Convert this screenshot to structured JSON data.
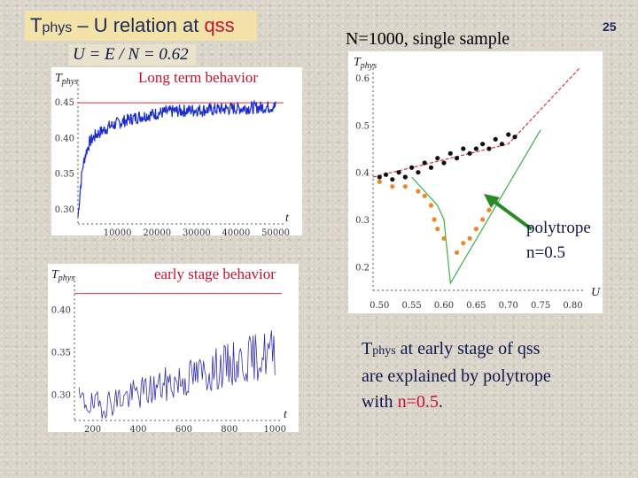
{
  "slide": {
    "title_T": "T",
    "title_sub": "phys",
    "title_rest": " – U relation at ",
    "title_qss": "qss",
    "formula": "U = E / N = 0.62",
    "page_number": "25",
    "heading": "N=1000, single sample",
    "label_long": "Long term behavior",
    "label_early": "early stage behavior",
    "polytrope_line1": "polytrope",
    "polytrope_line2": "n=0.5",
    "caption_T": "T",
    "caption_sub": "phys",
    "caption_l1": "  at  early stage of qss",
    "caption_l2": "are explained by polytrope",
    "caption_l3_pre": "with ",
    "caption_l3_red": "n=0.5",
    "caption_l3_post": ".",
    "colors": {
      "accent_red": "#c8102e",
      "text_navy": "#10164a",
      "title_bg": "#f3e3a8",
      "noise_blue": "#1a2ccf",
      "dot_orange": "#e8882a"
    }
  },
  "chart_data": [
    {
      "type": "line",
      "id": "long_term",
      "ylabel": "T_phys",
      "xlabel": "t",
      "x_ticks": [
        "10000",
        "20000",
        "30000",
        "40000",
        "50000"
      ],
      "y_ticks": [
        "0.30",
        "0.35",
        "0.40",
        "0.45"
      ],
      "ylim": [
        0.28,
        0.47
      ],
      "xlim": [
        0,
        52000
      ],
      "reference_line": {
        "name": "qss value",
        "y": 0.45,
        "color": "#d33"
      },
      "series": [
        {
          "color": "#1a2ccf",
          "x": [
            0,
            600,
            1200,
            2000,
            3000,
            4500,
            6000,
            8000,
            10000,
            12000,
            15000,
            18000,
            21000,
            24000,
            27000,
            30000,
            33000,
            36000,
            40000,
            44000,
            48000,
            50000
          ],
          "values": [
            0.29,
            0.33,
            0.36,
            0.38,
            0.395,
            0.405,
            0.41,
            0.417,
            0.421,
            0.425,
            0.43,
            0.433,
            0.436,
            0.438,
            0.439,
            0.44,
            0.44,
            0.441,
            0.442,
            0.443,
            0.444,
            0.445
          ]
        }
      ]
    },
    {
      "type": "line",
      "id": "early_stage",
      "ylabel": "T_phys",
      "xlabel": "t",
      "x_ticks": [
        "200",
        "400",
        "600",
        "800",
        "1000"
      ],
      "y_ticks": [
        "0.30",
        "0.35",
        "0.40"
      ],
      "ylim": [
        0.27,
        0.43
      ],
      "xlim": [
        120,
        1030
      ],
      "reference_line": {
        "name": "qss value",
        "y": 0.42,
        "color": "#d33"
      },
      "series": [
        {
          "color": "#3030b0",
          "x": [
            140,
            200,
            260,
            320,
            380,
            440,
            500,
            560,
            620,
            680,
            740,
            800,
            860,
            920,
            980,
            1000
          ],
          "values": [
            0.295,
            0.287,
            0.29,
            0.296,
            0.3,
            0.305,
            0.31,
            0.315,
            0.32,
            0.325,
            0.33,
            0.335,
            0.34,
            0.345,
            0.35,
            0.352
          ]
        }
      ]
    },
    {
      "type": "scatter",
      "id": "T_vs_U",
      "ylabel": "T_phys",
      "xlabel": "U",
      "x_ticks": [
        "0.50",
        "0.55",
        "0.60",
        "0.65",
        "0.70",
        "0.75",
        "0.80"
      ],
      "y_ticks": [
        "0.2",
        "0.3",
        "0.4",
        "0.5",
        "0.6"
      ],
      "xlim": [
        0.49,
        0.82
      ],
      "ylim": [
        0.15,
        0.63
      ],
      "lines": [
        {
          "name": "red dashed",
          "color": "#d33",
          "x": [
            0.49,
            0.7,
            0.81
          ],
          "values": [
            0.39,
            0.46,
            0.62
          ]
        },
        {
          "name": "green lower",
          "color": "#3cb043",
          "x": [
            0.55,
            0.59,
            0.6,
            0.61,
            0.75
          ],
          "values": [
            0.39,
            0.33,
            0.3,
            0.165,
            0.49
          ]
        }
      ],
      "series": [
        {
          "name": "black dots",
          "color": "#111111",
          "x": [
            0.5,
            0.51,
            0.52,
            0.53,
            0.54,
            0.55,
            0.56,
            0.57,
            0.58,
            0.59,
            0.6,
            0.61,
            0.62,
            0.63,
            0.64,
            0.65,
            0.66,
            0.67,
            0.68,
            0.69,
            0.7,
            0.71
          ],
          "values": [
            0.39,
            0.395,
            0.385,
            0.4,
            0.39,
            0.41,
            0.4,
            0.42,
            0.41,
            0.43,
            0.42,
            0.44,
            0.43,
            0.45,
            0.44,
            0.45,
            0.46,
            0.45,
            0.47,
            0.46,
            0.48,
            0.475
          ]
        },
        {
          "name": "orange dots",
          "color": "#e8882a",
          "x": [
            0.5,
            0.52,
            0.54,
            0.56,
            0.57,
            0.58,
            0.585,
            0.59,
            0.6,
            0.62,
            0.63,
            0.64,
            0.65,
            0.66,
            0.67,
            0.68
          ],
          "values": [
            0.38,
            0.37,
            0.37,
            0.36,
            0.35,
            0.33,
            0.3,
            0.28,
            0.26,
            0.23,
            0.25,
            0.26,
            0.28,
            0.3,
            0.32,
            0.34
          ]
        }
      ]
    }
  ]
}
